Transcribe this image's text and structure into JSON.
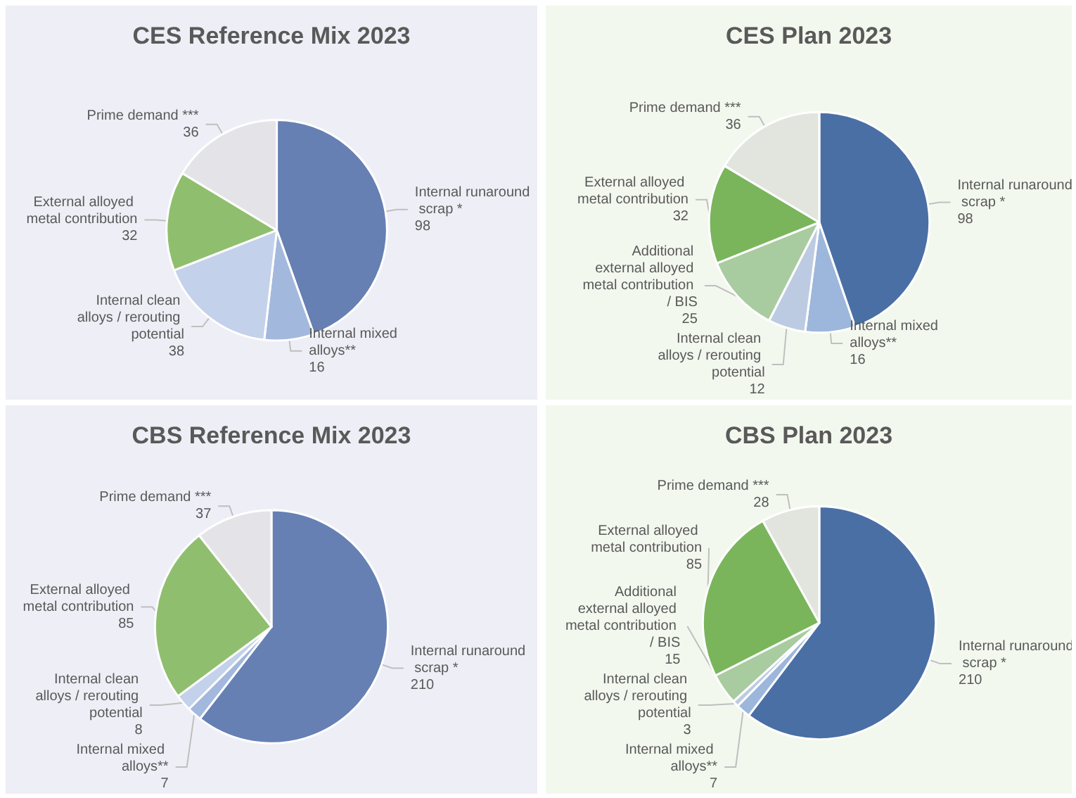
{
  "chart_data": [
    {
      "type": "pie",
      "title": "CES Reference Mix 2023",
      "categories": [
        "Internal runaround scrap *",
        "Internal mixed alloys**",
        "Internal clean alloys / rerouting potential",
        "External alloyed metal contribution",
        "Prime demand ***"
      ],
      "values": [
        98,
        16,
        38,
        32,
        36
      ],
      "colors": [
        "#6680b3",
        "#a3b8dd",
        "#c3d1ea",
        "#8fbf6e",
        "#e4e4e8"
      ],
      "data_labels": true
    },
    {
      "type": "pie",
      "title": "CES Plan 2023",
      "categories": [
        "Internal runaround scrap *",
        "Internal mixed alloys**",
        "Internal clean alloys / rerouting potential",
        "Additional external alloyed metal contribution / BIS",
        "External alloyed metal contribution",
        "Prime demand ***"
      ],
      "values": [
        98,
        16,
        12,
        25,
        32,
        36
      ],
      "colors": [
        "#4a6fa5",
        "#9db6dc",
        "#bccbe2",
        "#a9cba0",
        "#7ab55c",
        "#e2e4de"
      ],
      "data_labels": true
    },
    {
      "type": "pie",
      "title": "CBS Reference Mix 2023",
      "categories": [
        "Internal runaround scrap *",
        "Internal mixed alloys**",
        "Internal clean alloys / rerouting potential",
        "External alloyed metal contribution",
        "Prime demand ***"
      ],
      "values": [
        210,
        7,
        8,
        85,
        37
      ],
      "colors": [
        "#6680b3",
        "#a3b8dd",
        "#c3d1ea",
        "#8fbf6e",
        "#e4e4e8"
      ],
      "data_labels": true
    },
    {
      "type": "pie",
      "title": "CBS Plan 2023",
      "categories": [
        "Internal runaround scrap *",
        "Internal mixed alloys**",
        "Internal clean alloys / rerouting potential",
        "Additional external alloyed metal contribution / BIS",
        "External alloyed metal contribution",
        "Prime demand ***"
      ],
      "values": [
        210,
        7,
        3,
        15,
        85,
        28
      ],
      "colors": [
        "#4a6fa5",
        "#9db6dc",
        "#bccbe2",
        "#a9cba0",
        "#7ab55c",
        "#e2e4de"
      ],
      "data_labels": true
    }
  ]
}
